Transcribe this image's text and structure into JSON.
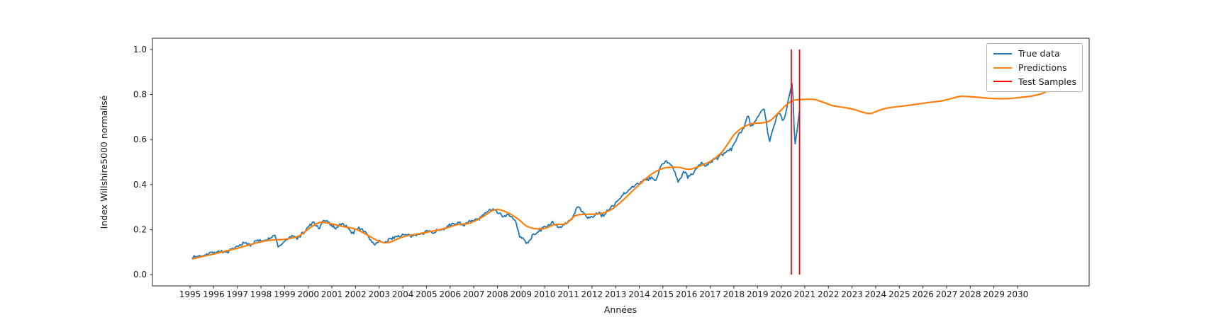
{
  "chart_data": {
    "type": "line",
    "title": "",
    "xlabel": "Années",
    "ylabel": "Index Willshire5000 normalisé",
    "xlim": [
      1993.41,
      2033.03
    ],
    "ylim": [
      -0.05,
      1.05
    ],
    "grid": false,
    "x_ticks": [
      1995,
      1996,
      1997,
      1998,
      1999,
      2000,
      2001,
      2002,
      2003,
      2004,
      2005,
      2006,
      2007,
      2008,
      2009,
      2010,
      2011,
      2012,
      2013,
      2014,
      2015,
      2016,
      2017,
      2018,
      2019,
      2020,
      2021,
      2022,
      2023,
      2024,
      2025,
      2026,
      2027,
      2028,
      2029,
      2030
    ],
    "y_ticks": [
      0.0,
      0.2,
      0.4,
      0.6,
      0.8,
      1.0
    ],
    "legend": {
      "position": "upper right",
      "entries": [
        {
          "label": "True data",
          "color": "#1f77b4"
        },
        {
          "label": "Predictions",
          "color": "#ff7f0e"
        },
        {
          "label": "Test Samples",
          "color": "#ff0000"
        }
      ]
    },
    "series": [
      {
        "name": "True data",
        "color": "#1f77b4",
        "noise": {
          "seed": 7,
          "amplitude": 0.0065,
          "step": 0.045
        },
        "points": [
          [
            1995.08,
            0.075
          ],
          [
            1995.4,
            0.083
          ],
          [
            1995.7,
            0.092
          ],
          [
            1996.0,
            0.1
          ],
          [
            1996.3,
            0.104
          ],
          [
            1996.55,
            0.098
          ],
          [
            1996.8,
            0.112
          ],
          [
            1997.0,
            0.124
          ],
          [
            1997.3,
            0.14
          ],
          [
            1997.55,
            0.133
          ],
          [
            1997.8,
            0.148
          ],
          [
            1998.1,
            0.152
          ],
          [
            1998.4,
            0.163
          ],
          [
            1998.6,
            0.172
          ],
          [
            1998.75,
            0.118
          ],
          [
            1998.9,
            0.14
          ],
          [
            1999.1,
            0.158
          ],
          [
            1999.35,
            0.17
          ],
          [
            1999.55,
            0.163
          ],
          [
            1999.8,
            0.186
          ],
          [
            2000.0,
            0.21
          ],
          [
            2000.2,
            0.235
          ],
          [
            2000.45,
            0.202
          ],
          [
            2000.7,
            0.245
          ],
          [
            2000.95,
            0.222
          ],
          [
            2001.15,
            0.207
          ],
          [
            2001.35,
            0.225
          ],
          [
            2001.6,
            0.218
          ],
          [
            2001.85,
            0.183
          ],
          [
            2002.1,
            0.21
          ],
          [
            2002.35,
            0.196
          ],
          [
            2002.6,
            0.158
          ],
          [
            2002.8,
            0.134
          ],
          [
            2003.0,
            0.152
          ],
          [
            2003.2,
            0.138
          ],
          [
            2003.5,
            0.162
          ],
          [
            2003.8,
            0.172
          ],
          [
            2004.1,
            0.177
          ],
          [
            2004.4,
            0.168
          ],
          [
            2004.75,
            0.184
          ],
          [
            2005.0,
            0.194
          ],
          [
            2005.3,
            0.188
          ],
          [
            2005.7,
            0.205
          ],
          [
            2006.0,
            0.217
          ],
          [
            2006.35,
            0.233
          ],
          [
            2006.6,
            0.221
          ],
          [
            2006.9,
            0.237
          ],
          [
            2007.2,
            0.247
          ],
          [
            2007.55,
            0.277
          ],
          [
            2007.8,
            0.296
          ],
          [
            2008.0,
            0.282
          ],
          [
            2008.2,
            0.26
          ],
          [
            2008.5,
            0.266
          ],
          [
            2008.75,
            0.24
          ],
          [
            2008.95,
            0.168
          ],
          [
            2009.1,
            0.16
          ],
          [
            2009.25,
            0.134
          ],
          [
            2009.5,
            0.175
          ],
          [
            2009.8,
            0.198
          ],
          [
            2010.05,
            0.213
          ],
          [
            2010.35,
            0.233
          ],
          [
            2010.55,
            0.207
          ],
          [
            2010.9,
            0.227
          ],
          [
            2011.1,
            0.242
          ],
          [
            2011.4,
            0.3
          ],
          [
            2011.6,
            0.283
          ],
          [
            2011.8,
            0.252
          ],
          [
            2012.0,
            0.258
          ],
          [
            2012.25,
            0.272
          ],
          [
            2012.5,
            0.262
          ],
          [
            2012.8,
            0.3
          ],
          [
            2013.1,
            0.33
          ],
          [
            2013.4,
            0.365
          ],
          [
            2013.85,
            0.4
          ],
          [
            2014.2,
            0.418
          ],
          [
            2014.55,
            0.43
          ],
          [
            2014.7,
            0.415
          ],
          [
            2014.9,
            0.478
          ],
          [
            2015.1,
            0.503
          ],
          [
            2015.35,
            0.49
          ],
          [
            2015.5,
            0.458
          ],
          [
            2015.65,
            0.41
          ],
          [
            2015.9,
            0.458
          ],
          [
            2016.05,
            0.432
          ],
          [
            2016.35,
            0.46
          ],
          [
            2016.6,
            0.497
          ],
          [
            2016.8,
            0.483
          ],
          [
            2017.0,
            0.5
          ],
          [
            2017.4,
            0.525
          ],
          [
            2017.9,
            0.558
          ],
          [
            2018.2,
            0.622
          ],
          [
            2018.45,
            0.663
          ],
          [
            2018.6,
            0.715
          ],
          [
            2018.72,
            0.655
          ],
          [
            2018.9,
            0.682
          ],
          [
            2019.1,
            0.712
          ],
          [
            2019.27,
            0.745
          ],
          [
            2019.5,
            0.588
          ],
          [
            2019.7,
            0.662
          ],
          [
            2019.87,
            0.718
          ],
          [
            2020.0,
            0.7
          ],
          [
            2020.12,
            0.683
          ],
          [
            2020.3,
            0.772
          ],
          [
            2020.48,
            0.862
          ],
          [
            2020.58,
            0.568
          ],
          [
            2020.68,
            0.648
          ],
          [
            2020.78,
            0.735
          ]
        ]
      },
      {
        "name": "Predictions",
        "color": "#ff7f0e",
        "points": [
          [
            1995.08,
            0.07
          ],
          [
            1996.0,
            0.092
          ],
          [
            1997.0,
            0.117
          ],
          [
            1997.7,
            0.138
          ],
          [
            1998.3,
            0.152
          ],
          [
            1999.0,
            0.157
          ],
          [
            1999.6,
            0.172
          ],
          [
            2000.1,
            0.21
          ],
          [
            2000.5,
            0.232
          ],
          [
            2001.0,
            0.225
          ],
          [
            2001.5,
            0.213
          ],
          [
            2002.0,
            0.202
          ],
          [
            2002.5,
            0.176
          ],
          [
            2003.0,
            0.148
          ],
          [
            2003.4,
            0.143
          ],
          [
            2004.0,
            0.168
          ],
          [
            2004.6,
            0.18
          ],
          [
            2005.2,
            0.192
          ],
          [
            2005.8,
            0.206
          ],
          [
            2006.3,
            0.222
          ],
          [
            2006.8,
            0.228
          ],
          [
            2007.3,
            0.252
          ],
          [
            2007.8,
            0.285
          ],
          [
            2008.1,
            0.288
          ],
          [
            2008.5,
            0.272
          ],
          [
            2008.9,
            0.245
          ],
          [
            2009.3,
            0.212
          ],
          [
            2009.9,
            0.203
          ],
          [
            2010.4,
            0.222
          ],
          [
            2010.9,
            0.227
          ],
          [
            2011.3,
            0.262
          ],
          [
            2011.8,
            0.268
          ],
          [
            2012.3,
            0.27
          ],
          [
            2012.8,
            0.288
          ],
          [
            2013.3,
            0.33
          ],
          [
            2013.9,
            0.39
          ],
          [
            2014.5,
            0.445
          ],
          [
            2015.0,
            0.472
          ],
          [
            2015.6,
            0.477
          ],
          [
            2016.1,
            0.468
          ],
          [
            2016.5,
            0.48
          ],
          [
            2017.0,
            0.503
          ],
          [
            2017.5,
            0.545
          ],
          [
            2018.0,
            0.62
          ],
          [
            2018.4,
            0.655
          ],
          [
            2018.8,
            0.671
          ],
          [
            2019.2,
            0.674
          ],
          [
            2019.55,
            0.685
          ],
          [
            2019.9,
            0.72
          ],
          [
            2020.2,
            0.752
          ],
          [
            2020.5,
            0.773
          ],
          [
            2020.9,
            0.778
          ],
          [
            2021.4,
            0.778
          ],
          [
            2021.8,
            0.765
          ],
          [
            2022.2,
            0.75
          ],
          [
            2022.7,
            0.742
          ],
          [
            2023.1,
            0.733
          ],
          [
            2023.5,
            0.72
          ],
          [
            2023.8,
            0.716
          ],
          [
            2024.1,
            0.728
          ],
          [
            2024.5,
            0.74
          ],
          [
            2025.0,
            0.747
          ],
          [
            2025.6,
            0.755
          ],
          [
            2026.2,
            0.764
          ],
          [
            2026.8,
            0.772
          ],
          [
            2027.3,
            0.785
          ],
          [
            2027.6,
            0.792
          ],
          [
            2028.0,
            0.79
          ],
          [
            2028.5,
            0.786
          ],
          [
            2029.0,
            0.782
          ],
          [
            2029.6,
            0.782
          ],
          [
            2030.1,
            0.787
          ],
          [
            2030.6,
            0.793
          ],
          [
            2031.0,
            0.803
          ],
          [
            2031.25,
            0.815
          ]
        ]
      }
    ],
    "vlines": {
      "name": "Test Samples",
      "color": "#ff0000",
      "x": [
        2020.43,
        2020.78
      ],
      "ymin": 0.0,
      "ymax": 1.0
    }
  }
}
